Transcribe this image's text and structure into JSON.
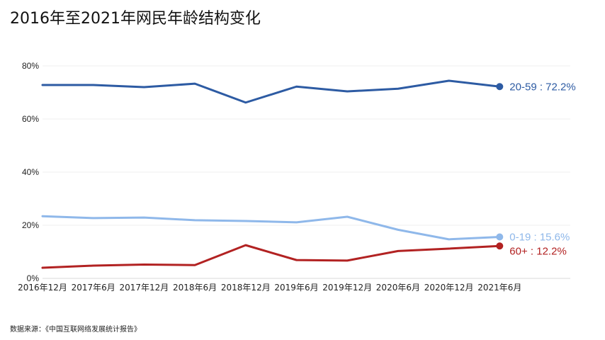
{
  "title": "2016年至2021年网民年龄结构变化",
  "source": "数据来源：《中国互联网络发展统计报告》",
  "chart_data": {
    "type": "line",
    "title": "2016年至2021年网民年龄结构变化",
    "xlabel": "",
    "ylabel": "",
    "categories": [
      "2016年12月",
      "2017年6月",
      "2017年12月",
      "2018年6月",
      "2018年12月",
      "2019年6月",
      "2019年12月",
      "2020年6月",
      "2020年12月",
      "2021年6月"
    ],
    "yticks": [
      "0%",
      "20%",
      "40%",
      "60%",
      "80%"
    ],
    "ylim": [
      0,
      80
    ],
    "grid": true,
    "legend": "end-of-line labels",
    "series": [
      {
        "key": "s2059",
        "name": "20-59",
        "color": "#2d5ba3",
        "values": [
          72.8,
          72.8,
          72.0,
          73.3,
          66.2,
          72.2,
          70.4,
          71.4,
          74.4,
          72.2
        ],
        "end_label": "20-59 : 72.2%"
      },
      {
        "key": "s019",
        "name": "0-19",
        "color": "#8fb8ea",
        "values": [
          23.4,
          22.7,
          22.9,
          21.9,
          21.6,
          21.1,
          23.2,
          18.3,
          14.7,
          15.6
        ],
        "end_label": "0-19 : 15.6%"
      },
      {
        "key": "s60",
        "name": "60+",
        "color": "#b22222",
        "values": [
          4.0,
          4.8,
          5.2,
          5.0,
          12.5,
          6.9,
          6.7,
          10.3,
          11.2,
          12.2
        ],
        "end_label": "60+ : 12.2%"
      }
    ]
  }
}
